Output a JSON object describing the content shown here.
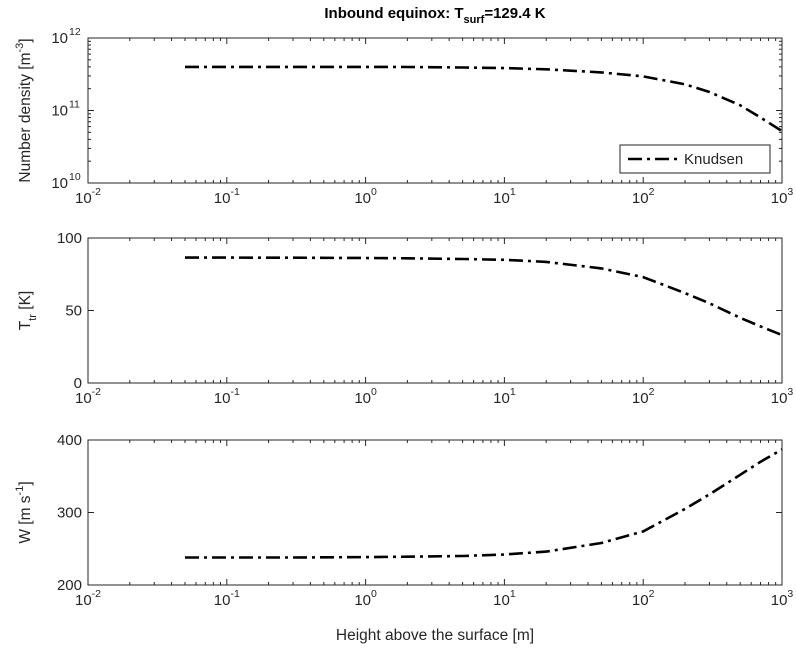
{
  "title": {
    "main": "Inbound equinox: T",
    "sub": "surf",
    "rest": "=129.4 K"
  },
  "chart_data": [
    {
      "type": "line",
      "xscale": "log",
      "yscale": "log",
      "xlim": [
        0.01,
        1000
      ],
      "ylim": [
        10000000000.0,
        1000000000000.0
      ],
      "xticks": [
        0.01,
        0.1,
        1,
        10,
        100,
        1000
      ],
      "xtick_labels": [
        "10",
        "10",
        "10",
        "10",
        "10",
        "10"
      ],
      "xtick_exponents": [
        "-2",
        "-1",
        "0",
        "1",
        "2",
        "3"
      ],
      "yticks": [
        10000000000.0,
        100000000000.0,
        1000000000000.0
      ],
      "ytick_labels": [
        "10",
        "10",
        "10"
      ],
      "ytick_exponents": [
        "10",
        "11",
        "12"
      ],
      "ylabel": {
        "text": "Number density [m",
        "sup": "-3",
        "close": "]"
      },
      "legend": {
        "position": "bottom-right",
        "entries": [
          "Knudsen"
        ]
      },
      "grid": false,
      "series": [
        {
          "name": "Knudsen",
          "x": [
            0.05,
            0.1,
            0.3,
            1,
            2,
            5,
            10,
            20,
            50,
            100,
            200,
            300,
            500,
            700,
            1000
          ],
          "y": [
            400000000000.0,
            400000000000.0,
            400000000000.0,
            400000000000.0,
            398000000000.0,
            392000000000.0,
            385000000000.0,
            370000000000.0,
            335000000000.0,
            295000000000.0,
            230000000000.0,
            180000000000.0,
            118000000000.0,
            80000000000.0,
            52000000000.0
          ]
        }
      ]
    },
    {
      "type": "line",
      "xscale": "log",
      "yscale": "linear",
      "xlim": [
        0.01,
        1000
      ],
      "ylim": [
        0,
        100
      ],
      "xticks": [
        0.01,
        0.1,
        1,
        10,
        100,
        1000
      ],
      "xtick_labels": [
        "10",
        "10",
        "10",
        "10",
        "10",
        "10"
      ],
      "xtick_exponents": [
        "-2",
        "-1",
        "0",
        "1",
        "2",
        "3"
      ],
      "yticks": [
        0,
        50,
        100
      ],
      "ytick_labels": [
        "0",
        "50",
        "100"
      ],
      "ylabel": {
        "text": "T",
        "sub": "tr",
        "close": " [K]"
      },
      "grid": false,
      "series": [
        {
          "x": [
            0.05,
            0.1,
            0.3,
            1,
            2,
            5,
            10,
            20,
            50,
            100,
            200,
            300,
            500,
            700,
            1000
          ],
          "y": [
            86.5,
            86.5,
            86.4,
            86.2,
            86,
            85.5,
            85,
            83.5,
            79,
            73,
            62,
            55,
            45,
            39,
            33
          ]
        }
      ]
    },
    {
      "type": "line",
      "xscale": "log",
      "yscale": "linear",
      "xlim": [
        0.01,
        1000
      ],
      "ylim": [
        200,
        400
      ],
      "xticks": [
        0.01,
        0.1,
        1,
        10,
        100,
        1000
      ],
      "xtick_labels": [
        "10",
        "10",
        "10",
        "10",
        "10",
        "10"
      ],
      "xtick_exponents": [
        "-2",
        "-1",
        "0",
        "1",
        "2",
        "3"
      ],
      "yticks": [
        200,
        300,
        400
      ],
      "ytick_labels": [
        "200",
        "300",
        "400"
      ],
      "ylabel": {
        "text": "W [m s",
        "sup": "-1",
        "close": "]"
      },
      "xlabel": "Height above the surface [m]",
      "grid": false,
      "series": [
        {
          "x": [
            0.05,
            0.1,
            0.3,
            1,
            2,
            5,
            10,
            20,
            50,
            100,
            200,
            300,
            500,
            700,
            1000
          ],
          "y": [
            238,
            238,
            238,
            238.5,
            239,
            240,
            242,
            246,
            258,
            274,
            305,
            325,
            352,
            370,
            387
          ]
        }
      ]
    }
  ]
}
